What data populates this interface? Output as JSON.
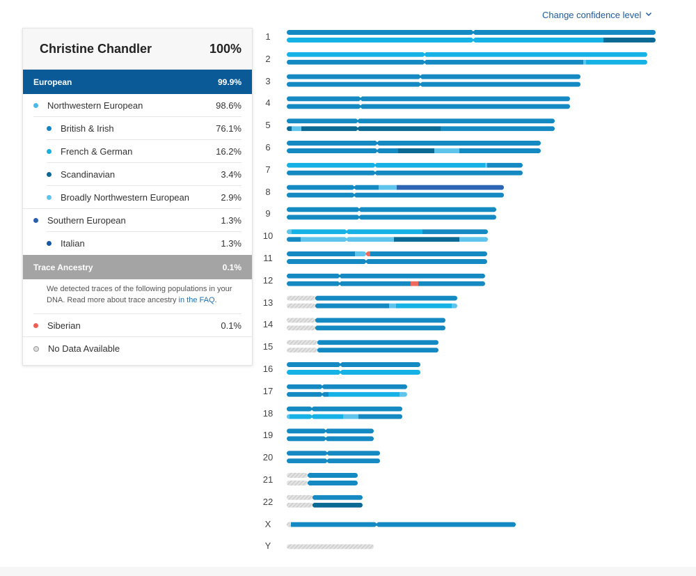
{
  "header": {
    "confidence_link": "Change confidence level"
  },
  "card": {
    "name": "Christine Chandler",
    "total": "100%",
    "european": {
      "label": "European",
      "pct": "99.9%"
    },
    "rows": [
      {
        "label": "Northwestern European",
        "pct": "98.6%",
        "color": "#4db8e8"
      },
      {
        "label": "British & Irish",
        "pct": "76.1%",
        "color": "#1385c3"
      },
      {
        "label": "French & German",
        "pct": "16.2%",
        "color": "#17aee0"
      },
      {
        "label": "Scandinavian",
        "pct": "3.4%",
        "color": "#0d6792"
      },
      {
        "label": "Broadly Northwestern European",
        "pct": "2.9%",
        "color": "#5fc3ea"
      },
      {
        "label": "Southern European",
        "pct": "1.3%",
        "color": "#2a5fb0"
      },
      {
        "label": "Italian",
        "pct": "1.3%",
        "color": "#1a57a3"
      }
    ],
    "trace": {
      "label": "Trace Ancestry",
      "pct": "0.1%",
      "note": "We detected traces of the following populations in your DNA. Read more about trace ancestry ",
      "faq_link": "in the FAQ",
      "note_end": "."
    },
    "siberian": {
      "label": "Siberian",
      "pct": "0.1%",
      "color": "#ef5f55"
    },
    "no_data": {
      "label": "No Data Available"
    }
  },
  "colors": {
    "british": "#1489c2",
    "french": "#16b2e6",
    "scand": "#0b6a94",
    "broad": "#5ec4ec",
    "southern": "#2b65b4",
    "siberian": "#ef6a5e",
    "nodata": "#d4d4d4"
  },
  "chromosomes": [
    {
      "label": "1",
      "len": 530,
      "cen": 268,
      "a": [
        [
          "british",
          530
        ]
      ],
      "b": [
        [
          "french",
          455
        ],
        [
          "scand",
          75
        ]
      ]
    },
    {
      "label": "2",
      "len": 518,
      "cen": 198,
      "a": [
        [
          "french",
          518
        ]
      ],
      "b": [
        [
          "british",
          426
        ],
        [
          "broad",
          4
        ],
        [
          "french",
          88
        ]
      ]
    },
    {
      "label": "3",
      "len": 422,
      "cen": 192,
      "a": [
        [
          "british",
          422
        ]
      ],
      "b": [
        [
          "british",
          422
        ]
      ]
    },
    {
      "label": "4",
      "len": 407,
      "cen": 106,
      "a": [
        [
          "british",
          407
        ]
      ],
      "b": [
        [
          "british",
          407
        ]
      ]
    },
    {
      "label": "5",
      "len": 385,
      "cen": 102,
      "a": [
        [
          "british",
          385
        ]
      ],
      "b": [
        [
          "scand",
          7
        ],
        [
          "broad",
          14
        ],
        [
          "scand",
          200
        ],
        [
          "british",
          164
        ]
      ]
    },
    {
      "label": "6",
      "len": 365,
      "cen": 130,
      "a": [
        [
          "british",
          365
        ]
      ],
      "b": [
        [
          "british",
          160
        ],
        [
          "scand",
          52
        ],
        [
          "broad",
          36
        ],
        [
          "british",
          117
        ]
      ]
    },
    {
      "label": "7",
      "len": 339,
      "cen": 127,
      "a": [
        [
          "french",
          285
        ],
        [
          "broad",
          3
        ],
        [
          "british",
          51
        ]
      ],
      "b": [
        [
          "british",
          339
        ]
      ]
    },
    {
      "label": "8",
      "len": 312,
      "cen": 97,
      "a": [
        [
          "british",
          132
        ],
        [
          "broad",
          26
        ],
        [
          "southern",
          154
        ]
      ],
      "b": [
        [
          "british",
          312
        ]
      ]
    },
    {
      "label": "9",
      "len": 301,
      "cen": 104,
      "a": [
        [
          "british",
          301
        ]
      ],
      "b": [
        [
          "british",
          301
        ]
      ]
    },
    {
      "label": "10",
      "len": 289,
      "cen": 86,
      "a": [
        [
          "broad",
          7
        ],
        [
          "french",
          188
        ],
        [
          "british",
          94
        ]
      ],
      "b": [
        [
          "british",
          20
        ],
        [
          "broad",
          134
        ],
        [
          "scand",
          94
        ],
        [
          "broad",
          41
        ]
      ]
    },
    {
      "label": "11",
      "len": 288,
      "cen": 114,
      "a": [
        [
          "british",
          98
        ],
        [
          "broad",
          16
        ],
        [
          "siberian",
          6
        ],
        [
          "british",
          168
        ]
      ],
      "b": [
        [
          "british",
          288
        ]
      ]
    },
    {
      "label": "12",
      "len": 285,
      "cen": 76,
      "a": [
        [
          "british",
          285
        ]
      ],
      "b": [
        [
          "british",
          178
        ],
        [
          "siberian",
          11
        ],
        [
          "british",
          96
        ]
      ]
    },
    {
      "label": "13",
      "len": 245,
      "cen": 41,
      "a": [
        [
          "nodata",
          41
        ],
        [
          "british",
          204
        ]
      ],
      "b": [
        [
          "nodata",
          41
        ],
        [
          "british",
          106
        ],
        [
          "broad",
          10
        ],
        [
          "french",
          80
        ],
        [
          "broad",
          8
        ]
      ]
    },
    {
      "label": "14",
      "len": 228,
      "cen": 41,
      "a": [
        [
          "nodata",
          41
        ],
        [
          "british",
          187
        ]
      ],
      "b": [
        [
          "nodata",
          41
        ],
        [
          "british",
          187
        ]
      ]
    },
    {
      "label": "15",
      "len": 218,
      "cen": 44,
      "a": [
        [
          "nodata",
          44
        ],
        [
          "british",
          174
        ]
      ],
      "b": [
        [
          "nodata",
          44
        ],
        [
          "british",
          174
        ]
      ]
    },
    {
      "label": "16",
      "len": 192,
      "cen": 77,
      "a": [
        [
          "british",
          192
        ]
      ],
      "b": [
        [
          "french",
          192
        ]
      ]
    },
    {
      "label": "17",
      "len": 173,
      "cen": 51,
      "a": [
        [
          "british",
          173
        ]
      ],
      "b": [
        [
          "british",
          60
        ],
        [
          "french",
          102
        ],
        [
          "broad",
          11
        ]
      ]
    },
    {
      "label": "18",
      "len": 166,
      "cen": 36,
      "a": [
        [
          "british",
          166
        ]
      ],
      "b": [
        [
          "broad",
          4
        ],
        [
          "french",
          77
        ],
        [
          "broad",
          22
        ],
        [
          "british",
          63
        ]
      ]
    },
    {
      "label": "19",
      "len": 125,
      "cen": 56,
      "a": [
        [
          "british",
          125
        ]
      ],
      "b": [
        [
          "british",
          125
        ]
      ]
    },
    {
      "label": "20",
      "len": 134,
      "cen": 58,
      "a": [
        [
          "british",
          134
        ]
      ],
      "b": [
        [
          "british",
          134
        ]
      ]
    },
    {
      "label": "21",
      "len": 102,
      "cen": 30,
      "a": [
        [
          "nodata",
          30
        ],
        [
          "british",
          72
        ]
      ],
      "b": [
        [
          "nodata",
          30
        ],
        [
          "british",
          72
        ]
      ]
    },
    {
      "label": "22",
      "len": 109,
      "cen": 37,
      "a": [
        [
          "nodata",
          37
        ],
        [
          "british",
          72
        ]
      ],
      "b": [
        [
          "nodata",
          37
        ],
        [
          "scand",
          72
        ]
      ]
    },
    {
      "label": "X",
      "len": 329,
      "cen": 129,
      "a": [
        [
          "nodata",
          6
        ],
        [
          "british",
          323
        ]
      ],
      "single": true
    },
    {
      "label": "Y",
      "len": 125,
      "cen": 0,
      "a": [
        [
          "nodata",
          125
        ]
      ],
      "single": true
    }
  ]
}
